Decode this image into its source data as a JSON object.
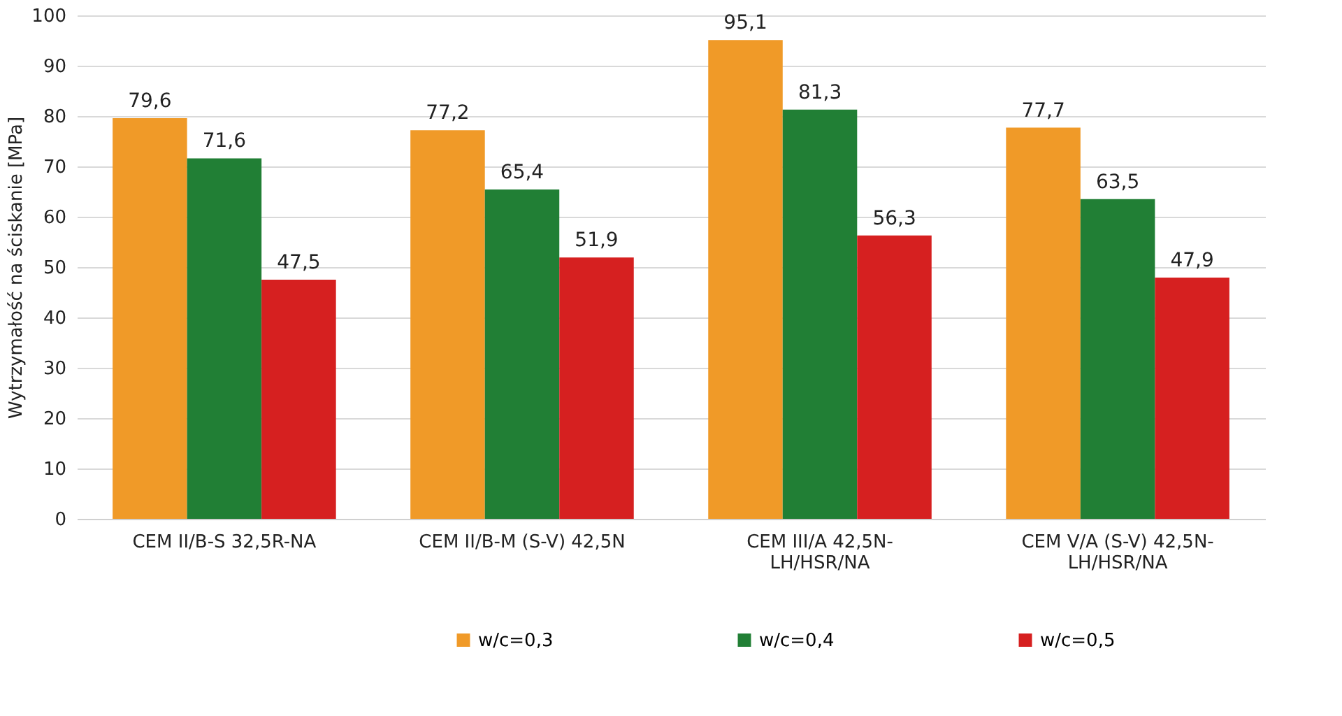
{
  "chart_data": {
    "type": "bar",
    "ylabel": "Wytrzymałość na ściskanie [MPa]",
    "categories": [
      "CEM II/B-S 32,5R-NA",
      "CEM II/B-M (S-V) 42,5N",
      "CEM III/A 42,5N-LH/HSR/NA",
      "CEM V/A (S-V) 42,5N-LH/HSR/NA"
    ],
    "series": [
      {
        "name": "w/c=0,3",
        "color": "#f09a28",
        "values": [
          79.6,
          77.2,
          95.1,
          77.7
        ],
        "value_labels": [
          "79,6",
          "77,2",
          "95,1",
          "77,7"
        ]
      },
      {
        "name": "w/c=0,4",
        "color": "#217f35",
        "values": [
          71.6,
          65.4,
          81.3,
          63.5
        ],
        "value_labels": [
          "71,6",
          "65,4",
          "81,3",
          "63,5"
        ]
      },
      {
        "name": "w/c=0,5",
        "color": "#d62020",
        "values": [
          47.5,
          51.9,
          56.3,
          47.9
        ],
        "value_labels": [
          "47,5",
          "51,9",
          "56,3",
          "47,9"
        ]
      }
    ],
    "ylim": [
      0,
      100
    ],
    "yticks": [
      0,
      10,
      20,
      30,
      40,
      50,
      60,
      70,
      80,
      90,
      100
    ],
    "grid": "y",
    "legend": "bottom"
  }
}
